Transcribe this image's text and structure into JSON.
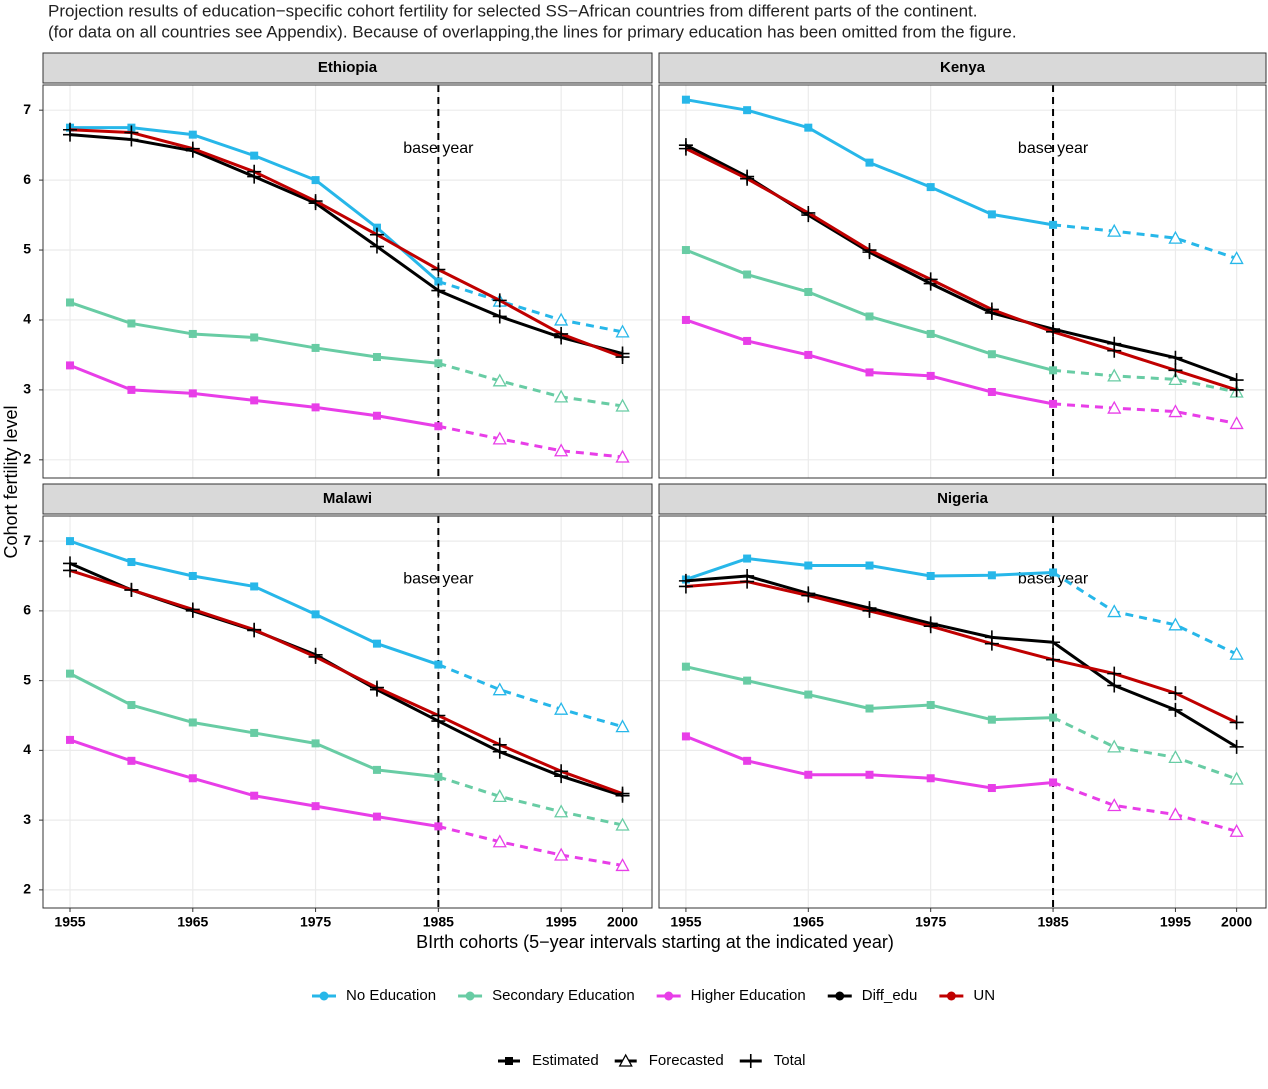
{
  "chart_data": {
    "type": "line",
    "title": [
      "Projection results of education−specific cohort fertility for selected SS−African countries from different parts of the continent.",
      "(for data on all countries see Appendix). Because of overlapping,the lines for primary education has been omitted from the figure."
    ],
    "x_label": "BIrth cohorts (5−year intervals starting at the indicated year)",
    "y_label": "Cohort fertility level",
    "x": [
      1955,
      1960,
      1965,
      1970,
      1975,
      1980,
      1985,
      1990,
      1995,
      2000
    ],
    "xlim": [
      1952.8,
      2002.4
    ],
    "xticks": [
      1955,
      1965,
      1975,
      1985,
      1995,
      2000
    ],
    "ylim": [
      1.74,
      7.36
    ],
    "yticks": [
      2,
      3,
      4,
      5,
      6,
      7
    ],
    "grid": true,
    "base_year": 1985,
    "annotation": {
      "text": "base year",
      "y": 6.45
    },
    "shape_legend": [
      "Estimated",
      "Forecasted",
      "Total"
    ],
    "series_info": [
      {
        "name": "No Education",
        "color": "#27b7e9",
        "shape": "split"
      },
      {
        "name": "Secondary Education",
        "color": "#68cca4",
        "shape": "split"
      },
      {
        "name": "Higher Education",
        "color": "#e83ee8",
        "shape": "split"
      },
      {
        "name": "Diff_edu",
        "color": "#000000",
        "shape": "total"
      },
      {
        "name": "UN",
        "color": "#c00000",
        "shape": "total"
      }
    ],
    "panels": [
      {
        "title": "Ethiopia",
        "series": [
          [
            6.75,
            6.75,
            6.65,
            6.35,
            6.0,
            5.32,
            4.55,
            4.27,
            4.0,
            3.83
          ],
          [
            4.25,
            3.95,
            3.8,
            3.75,
            3.6,
            3.47,
            3.38,
            3.13,
            2.9,
            2.77
          ],
          [
            3.35,
            3.0,
            2.95,
            2.85,
            2.75,
            2.63,
            2.48,
            2.3,
            2.13,
            2.04
          ],
          [
            6.65,
            6.58,
            6.42,
            6.05,
            5.67,
            5.05,
            4.42,
            4.05,
            3.75,
            3.52
          ],
          [
            6.72,
            6.68,
            6.45,
            6.12,
            5.7,
            5.22,
            4.72,
            4.28,
            3.8,
            3.47
          ]
        ]
      },
      {
        "title": "Kenya",
        "series": [
          [
            7.15,
            7.0,
            6.75,
            6.25,
            5.9,
            5.51,
            5.36,
            5.27,
            5.17,
            4.88
          ],
          [
            5.0,
            4.65,
            4.4,
            4.05,
            3.8,
            3.51,
            3.28,
            3.2,
            3.15,
            2.97
          ],
          [
            4.0,
            3.7,
            3.5,
            3.25,
            3.2,
            2.97,
            2.8,
            2.74,
            2.69,
            2.52
          ],
          [
            6.5,
            6.05,
            5.5,
            4.97,
            4.52,
            4.1,
            3.87,
            3.66,
            3.46,
            3.14
          ],
          [
            6.45,
            6.02,
            5.53,
            5.0,
            4.58,
            4.15,
            3.83,
            3.56,
            3.28,
            3.0
          ]
        ]
      },
      {
        "title": "Malawi",
        "series": [
          [
            7.0,
            6.7,
            6.5,
            6.35,
            5.95,
            5.53,
            5.23,
            4.87,
            4.59,
            4.34
          ],
          [
            5.1,
            4.65,
            4.4,
            4.25,
            4.1,
            3.72,
            3.62,
            3.34,
            3.12,
            2.93
          ],
          [
            4.15,
            3.85,
            3.6,
            3.35,
            3.2,
            3.05,
            2.91,
            2.69,
            2.5,
            2.35
          ],
          [
            6.68,
            6.3,
            6.0,
            5.72,
            5.37,
            4.87,
            4.42,
            3.98,
            3.63,
            3.35
          ],
          [
            6.58,
            6.3,
            6.02,
            5.73,
            5.34,
            4.9,
            4.5,
            4.08,
            3.7,
            3.38
          ]
        ]
      },
      {
        "title": "Nigeria",
        "series": [
          [
            6.45,
            6.75,
            6.65,
            6.65,
            6.5,
            6.51,
            6.55,
            5.99,
            5.8,
            5.38
          ],
          [
            5.2,
            5.0,
            4.8,
            4.6,
            4.65,
            4.44,
            4.47,
            4.05,
            3.9,
            3.59
          ],
          [
            4.2,
            3.85,
            3.65,
            3.65,
            3.6,
            3.46,
            3.54,
            3.21,
            3.08,
            2.84
          ],
          [
            6.43,
            6.5,
            6.25,
            6.04,
            5.82,
            5.62,
            5.55,
            4.93,
            4.58,
            4.05
          ],
          [
            6.35,
            6.42,
            6.22,
            6.0,
            5.78,
            5.53,
            5.3,
            5.1,
            4.82,
            4.4
          ]
        ]
      }
    ]
  }
}
